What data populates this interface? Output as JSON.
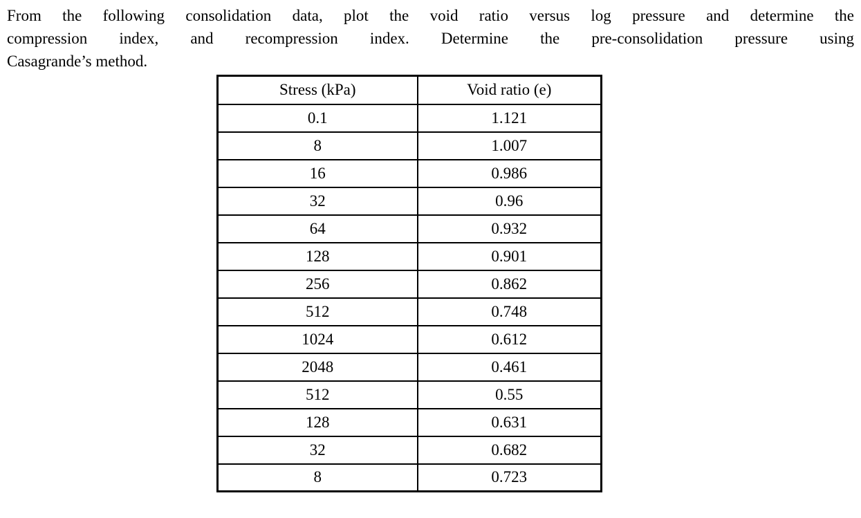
{
  "document": {
    "problem_lines": [
      "From the following consolidation data, plot the void ratio versus log pressure and determine the",
      "compression index, and recompression index. Determine the pre-consolidation pressure using",
      "Casagrande’s method."
    ]
  },
  "table": {
    "headers": [
      "Stress (kPa)",
      "Void ratio (e)"
    ],
    "rows": [
      [
        "0.1",
        "1.121"
      ],
      [
        "8",
        "1.007"
      ],
      [
        "16",
        "0.986"
      ],
      [
        "32",
        "0.96"
      ],
      [
        "64",
        "0.932"
      ],
      [
        "128",
        "0.901"
      ],
      [
        "256",
        "0.862"
      ],
      [
        "512",
        "0.748"
      ],
      [
        "1024",
        "0.612"
      ],
      [
        "2048",
        "0.461"
      ],
      [
        "512",
        "0.55"
      ],
      [
        "128",
        "0.631"
      ],
      [
        "32",
        "0.682"
      ],
      [
        "8",
        "0.723"
      ]
    ]
  },
  "colors": {
    "text": "#000000",
    "background": "#ffffff",
    "border": "#000000"
  }
}
